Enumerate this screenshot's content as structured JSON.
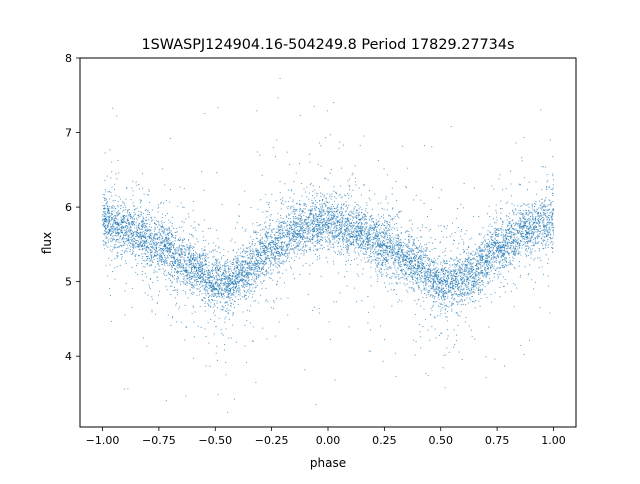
{
  "chart_data": {
    "type": "scatter",
    "title": "1SWASPJ124904.16-504249.8 Period 17829.27734s",
    "xlabel": "phase",
    "ylabel": "flux",
    "xlim": [
      -1.1,
      1.1
    ],
    "ylim": [
      3.05,
      8.0
    ],
    "xticks": [
      -1.0,
      -0.75,
      -0.5,
      -0.25,
      0.0,
      0.25,
      0.5,
      0.75,
      1.0
    ],
    "xtick_labels": [
      "−1.00",
      "−0.75",
      "−0.50",
      "−0.25",
      "0.00",
      "0.25",
      "0.50",
      "0.75",
      "1.00"
    ],
    "yticks": [
      4,
      5,
      6,
      7,
      8
    ],
    "ytick_labels": [
      "4",
      "5",
      "6",
      "7",
      "8"
    ],
    "grid": false,
    "marker_color": "#1f77b4",
    "trend": {
      "x": [
        -1.0,
        -0.875,
        -0.75,
        -0.625,
        -0.5,
        -0.45,
        -0.375,
        -0.25,
        -0.125,
        0.0,
        0.125,
        0.25,
        0.375,
        0.5,
        0.55,
        0.625,
        0.75,
        0.875,
        1.0
      ],
      "flux": [
        5.8,
        5.68,
        5.5,
        5.25,
        4.98,
        4.95,
        5.1,
        5.45,
        5.7,
        5.8,
        5.68,
        5.5,
        5.25,
        4.98,
        4.95,
        5.1,
        5.45,
        5.7,
        5.8
      ]
    }
  }
}
